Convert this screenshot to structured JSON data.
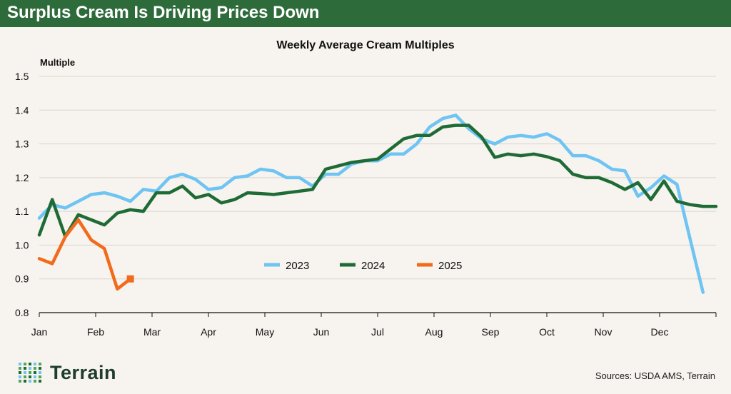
{
  "banner": {
    "title": "Surplus Cream Is Driving Prices Down"
  },
  "footer": {
    "brand": "Terrain",
    "sources": "Sources: USDA AMS, Terrain"
  },
  "colors": {
    "banner": "#2e6b3a",
    "s2023": "#6ec4f2",
    "s2024": "#1f6b36",
    "s2025": "#f26a1b"
  },
  "chart_data": {
    "type": "line",
    "title": "Weekly Average Cream Multiples",
    "ylabel": "Multiple",
    "xlabel": "",
    "ylim": [
      0.8,
      1.5
    ],
    "yticks": [
      "1.5",
      "1.4",
      "1.3",
      "1.2",
      "1.1",
      "1.0",
      "0.9",
      "0.8"
    ],
    "xlim": [
      0,
      52
    ],
    "months": [
      "Jan",
      "Feb",
      "Mar",
      "Apr",
      "May",
      "Jun",
      "Jul",
      "Aug",
      "Sep",
      "Oct",
      "Nov",
      "Dec"
    ],
    "legend": {
      "position": "center",
      "entries": [
        "2023",
        "2024",
        "2025"
      ]
    },
    "series": [
      {
        "name": "2023",
        "x": [
          0,
          1,
          2,
          3,
          4,
          5,
          6,
          7,
          8,
          9,
          10,
          11,
          12,
          13,
          14,
          15,
          16,
          17,
          18,
          19,
          20,
          21,
          22,
          23,
          24,
          25,
          26,
          27,
          28,
          29,
          30,
          31,
          32,
          33,
          34,
          35,
          36,
          37,
          38,
          39,
          40,
          41,
          42,
          43,
          44,
          45,
          46,
          47,
          48,
          49,
          50,
          51
        ],
        "y": [
          1.08,
          1.12,
          1.11,
          1.13,
          1.15,
          1.155,
          1.145,
          1.13,
          1.165,
          1.16,
          1.2,
          1.21,
          1.195,
          1.165,
          1.17,
          1.2,
          1.205,
          1.225,
          1.22,
          1.2,
          1.2,
          1.175,
          1.21,
          1.21,
          1.24,
          1.25,
          1.25,
          1.27,
          1.27,
          1.3,
          1.35,
          1.375,
          1.385,
          1.345,
          1.315,
          1.3,
          1.32,
          1.325,
          1.32,
          1.33,
          1.31,
          1.265,
          1.265,
          1.25,
          1.225,
          1.22,
          1.145,
          1.17,
          1.205,
          1.18,
          1.02,
          0.86
        ]
      },
      {
        "name": "2024",
        "x": [
          0,
          1,
          2,
          3,
          4,
          5,
          6,
          7,
          8,
          9,
          10,
          11,
          12,
          13,
          14,
          15,
          16,
          17,
          18,
          19,
          20,
          21,
          22,
          23,
          24,
          25,
          26,
          27,
          28,
          29,
          30,
          31,
          32,
          33,
          34,
          35,
          36,
          37,
          38,
          39,
          40,
          41,
          42,
          43,
          44,
          45,
          46,
          47,
          48,
          49,
          50,
          51,
          52
        ],
        "y": [
          1.03,
          1.135,
          1.025,
          1.09,
          1.075,
          1.06,
          1.095,
          1.105,
          1.1,
          1.155,
          1.155,
          1.175,
          1.14,
          1.15,
          1.125,
          1.135,
          1.155,
          1.153,
          1.15,
          1.155,
          1.16,
          1.165,
          1.225,
          1.235,
          1.245,
          1.25,
          1.255,
          1.285,
          1.315,
          1.325,
          1.325,
          1.35,
          1.355,
          1.355,
          1.32,
          1.26,
          1.27,
          1.265,
          1.27,
          1.262,
          1.25,
          1.21,
          1.2,
          1.2,
          1.185,
          1.165,
          1.185,
          1.135,
          1.19,
          1.13,
          1.12,
          1.115,
          1.115
        ]
      },
      {
        "name": "2025",
        "x": [
          0,
          1,
          2,
          3,
          4,
          5,
          6,
          7
        ],
        "y": [
          0.96,
          0.945,
          1.025,
          1.075,
          1.015,
          0.99,
          0.87,
          0.9
        ]
      }
    ]
  }
}
